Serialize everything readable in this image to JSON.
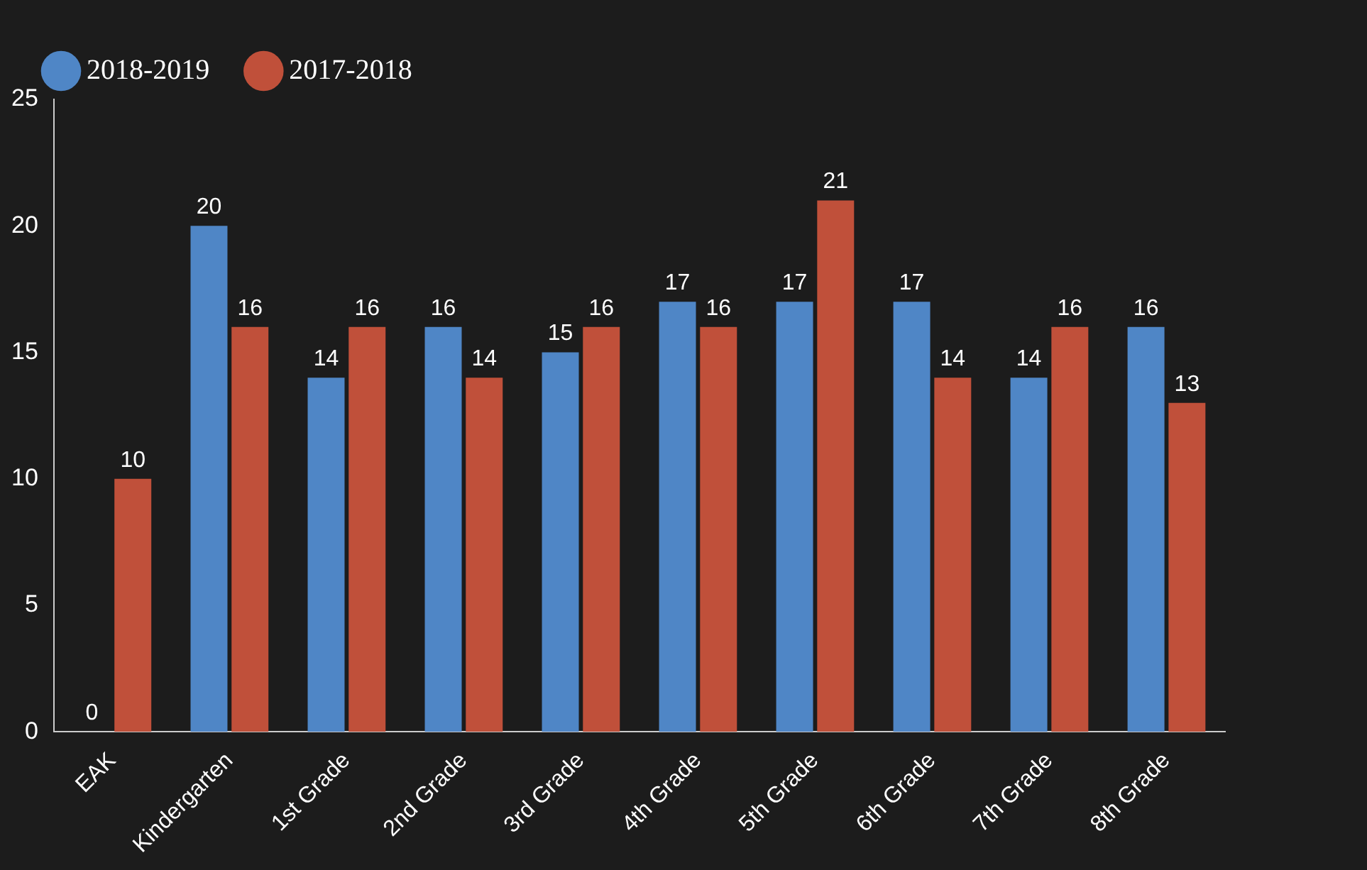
{
  "chart_data": {
    "type": "bar",
    "categories": [
      "EAK",
      "Kindergarten",
      "1st Grade",
      "2nd Grade",
      "3rd Grade",
      "4th Grade",
      "5th Grade",
      "6th Grade",
      "7th Grade",
      "8th Grade"
    ],
    "series": [
      {
        "name": "2018-2019",
        "color": "#4f86c6",
        "values": [
          0,
          20,
          14,
          16,
          15,
          17,
          17,
          17,
          14,
          16
        ]
      },
      {
        "name": "2017-2018",
        "color": "#c0503a",
        "values": [
          10,
          16,
          16,
          14,
          16,
          16,
          21,
          14,
          16,
          13
        ]
      }
    ],
    "ylim": [
      0,
      25
    ],
    "yticks": [
      0,
      5,
      10,
      15,
      20,
      25
    ],
    "grid": false,
    "legend": "top left",
    "data_labels": true
  }
}
